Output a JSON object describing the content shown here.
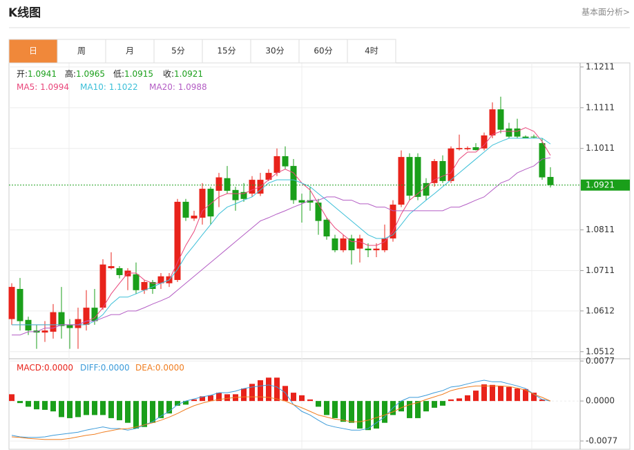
{
  "header": {
    "title": "K线图",
    "link": "基本面分析>"
  },
  "tabs": [
    "日",
    "周",
    "月",
    "5分",
    "15分",
    "30分",
    "60分",
    "4时"
  ],
  "active_tab": 0,
  "chart_data": [
    {
      "type": "candlestick",
      "up_color": "#e8231b",
      "down_color": "#1a9f1a",
      "ylim": [
        1.0498,
        1.1221
      ],
      "yticks": [
        1.0512,
        1.0612,
        1.0711,
        1.0811,
        1.1011,
        1.1111,
        1.1211
      ],
      "grid": true,
      "ohlc_labels": [
        "开:",
        "高:",
        "低:",
        "收:"
      ],
      "separator": ": ",
      "open": [
        1.0592,
        1.0666,
        1.059,
        1.0564,
        1.0559,
        1.0561,
        1.0609,
        1.0578,
        1.057,
        1.0578,
        1.062,
        1.062,
        1.0717,
        1.0717,
        1.0697,
        1.0702,
        1.0663,
        1.0683,
        1.068,
        1.068,
        1.0688,
        1.088,
        1.0839,
        1.0841,
        1.0912,
        1.0907,
        1.0938,
        1.0909,
        1.0904,
        1.09,
        1.09,
        1.0934,
        1.0951,
        1.0992,
        1.0968,
        1.0884,
        1.0884,
        1.0878,
        1.0836,
        1.079,
        1.0761,
        1.079,
        1.0765,
        1.0765,
        1.0761,
        1.0761,
        1.079,
        1.0873,
        1.099,
        1.099,
        1.0926,
        1.0926,
        1.098,
        1.0931,
        1.1009,
        1.1009,
        1.1014,
        1.1011,
        1.1043,
        1.1107,
        1.106,
        1.106,
        1.104,
        1.104,
        1.1024,
        1.0941
      ],
      "high": [
        1.068,
        1.0693,
        1.0598,
        1.0578,
        1.0587,
        1.0629,
        1.0671,
        1.0592,
        1.062,
        1.0663,
        1.0666,
        1.0739,
        1.0756,
        1.0722,
        1.0717,
        1.0731,
        1.0688,
        1.0688,
        1.0705,
        1.0705,
        1.0887,
        1.0887,
        1.0858,
        1.0926,
        1.0917,
        1.0951,
        1.0968,
        1.0917,
        1.0926,
        1.0943,
        1.0951,
        1.096,
        1.1011,
        1.1016,
        1.0985,
        1.09,
        1.0917,
        1.0887,
        1.0841,
        1.0799,
        1.0799,
        1.0799,
        1.0799,
        1.0778,
        1.0778,
        1.0824,
        1.0884,
        1.1006,
        1.0999,
        1.0999,
        1.0938,
        1.0985,
        1.0994,
        1.1016,
        1.1045,
        1.1016,
        1.1024,
        1.105,
        1.1124,
        1.1138,
        1.1074,
        1.1084,
        1.1043,
        1.1045,
        1.1036,
        1.0965
      ],
      "low": [
        1.0578,
        1.0564,
        1.0553,
        1.0519,
        1.0536,
        1.0544,
        1.0544,
        1.0519,
        1.0519,
        1.0564,
        1.0578,
        1.0615,
        1.0714,
        1.0692,
        1.0663,
        1.0654,
        1.0654,
        1.0654,
        1.0666,
        1.0671,
        1.0683,
        1.0833,
        1.0833,
        1.0824,
        1.0824,
        1.0867,
        1.09,
        1.0858,
        1.088,
        1.0892,
        1.0894,
        1.0931,
        1.0943,
        1.096,
        1.0875,
        1.0829,
        1.0858,
        1.0799,
        1.0787,
        1.0756,
        1.0756,
        1.0726,
        1.0731,
        1.0744,
        1.0744,
        1.0756,
        1.0782,
        1.0867,
        1.0884,
        1.0884,
        1.0884,
        1.0917,
        1.0926,
        1.0926,
        1.1006,
        1.1006,
        1.1006,
        1.1006,
        1.1036,
        1.1048,
        1.1036,
        1.1036,
        1.1036,
        1.1036,
        1.0934,
        1.0915
      ],
      "close": [
        1.0671,
        1.0587,
        1.0564,
        1.0559,
        1.0564,
        1.0609,
        1.0575,
        1.057,
        1.0592,
        1.062,
        1.0587,
        1.0726,
        1.0722,
        1.07,
        1.0711,
        1.0663,
        1.0683,
        1.0666,
        1.0697,
        1.0697,
        1.088,
        1.0841,
        1.0846,
        1.0912,
        1.0844,
        1.094,
        1.0907,
        1.0884,
        1.0887,
        1.0934,
        1.0934,
        1.0951,
        1.0992,
        1.0967,
        1.0884,
        1.0878,
        1.0878,
        1.0833,
        1.0795,
        1.0761,
        1.079,
        1.0761,
        1.079,
        1.0761,
        1.0765,
        1.079,
        1.0873,
        1.099,
        1.0895,
        1.0892,
        1.0895,
        1.098,
        1.0931,
        1.1011,
        1.1012,
        1.1012,
        1.1007,
        1.1043,
        1.1107,
        1.1057,
        1.104,
        1.104,
        1.1036,
        1.1038,
        1.094,
        1.0921
      ],
      "series": [
        {
          "name": "MA5",
          "color": "#e9457a",
          "values": [
            1.0578,
            1.0578,
            1.0578,
            1.0578,
            1.0578,
            1.0578,
            1.0578,
            1.0578,
            1.0578,
            1.0587,
            1.0595,
            1.062,
            1.0654,
            1.068,
            1.0705,
            1.0705,
            1.0688,
            1.068,
            1.068,
            1.0688,
            1.0731,
            1.0773,
            1.0807,
            1.0858,
            1.0875,
            1.0892,
            1.09,
            1.09,
            1.09,
            1.0909,
            1.0917,
            1.0934,
            1.0951,
            1.096,
            1.0951,
            1.0926,
            1.0909,
            1.0875,
            1.0841,
            1.0816,
            1.0799,
            1.0782,
            1.0782,
            1.0773,
            1.0773,
            1.0782,
            1.0807,
            1.085,
            1.0884,
            1.09,
            1.0917,
            1.0934,
            1.0943,
            1.0951,
            1.0985,
            1.1002,
            1.1002,
            1.1019,
            1.1045,
            1.1053,
            1.1053,
            1.1053,
            1.1062,
            1.1053,
            1.1028,
            1.0994
          ]
        },
        {
          "name": "MA10",
          "color": "#3bbfd8",
          "values": [
            1.0578,
            1.0578,
            1.0578,
            1.0578,
            1.0578,
            1.0578,
            1.0578,
            1.0578,
            1.0578,
            1.0578,
            1.0587,
            1.0603,
            1.0629,
            1.0646,
            1.0646,
            1.0654,
            1.0663,
            1.0671,
            1.068,
            1.0688,
            1.0714,
            1.0748,
            1.0773,
            1.0799,
            1.0824,
            1.085,
            1.0867,
            1.0875,
            1.0884,
            1.0892,
            1.0909,
            1.0926,
            1.0934,
            1.0934,
            1.0934,
            1.0926,
            1.0917,
            1.09,
            1.0884,
            1.0867,
            1.085,
            1.0833,
            1.0816,
            1.0799,
            1.079,
            1.079,
            1.0799,
            1.0824,
            1.085,
            1.0867,
            1.0884,
            1.09,
            1.0917,
            1.0934,
            1.0951,
            1.0968,
            1.0985,
            1.1002,
            1.1019,
            1.1028,
            1.1036,
            1.1036,
            1.1036,
            1.1036,
            1.1036,
            1.1022
          ]
        },
        {
          "name": "MA20",
          "color": "#b35cc4",
          "values": [
            1.0553,
            1.0553,
            1.0561,
            1.0561,
            1.057,
            1.057,
            1.0578,
            1.0578,
            1.0578,
            1.0587,
            1.0587,
            1.0595,
            1.0603,
            1.0603,
            1.0612,
            1.0612,
            1.062,
            1.0629,
            1.0637,
            1.0646,
            1.0663,
            1.068,
            1.0697,
            1.0714,
            1.0731,
            1.0748,
            1.0765,
            1.0782,
            1.0799,
            1.0816,
            1.0833,
            1.0841,
            1.085,
            1.0858,
            1.0867,
            1.0875,
            1.0884,
            1.0884,
            1.0892,
            1.0892,
            1.0884,
            1.0884,
            1.0875,
            1.0875,
            1.0867,
            1.0867,
            1.0858,
            1.0858,
            1.0858,
            1.0858,
            1.0858,
            1.0858,
            1.0858,
            1.0867,
            1.0867,
            1.0875,
            1.0884,
            1.0892,
            1.0909,
            1.0926,
            1.0934,
            1.0951,
            1.096,
            1.0968,
            1.0985,
            1.0988
          ]
        }
      ]
    },
    {
      "type": "macd",
      "ylim": [
        -0.0093,
        0.008
      ],
      "yticks": [
        {
          "value": 0.0077,
          "label": "0.0077"
        },
        {
          "value": 0,
          "label": "0.0000"
        },
        {
          "value": -0.0077,
          "label": "-0.0077"
        }
      ],
      "separator": ":",
      "series": [
        {
          "name": "MACD",
          "up_color": "#e8231b",
          "down_color": "#1a9f1a",
          "legend_value": "0.0000",
          "values": [
            0.0013,
            -0.0004,
            -0.0011,
            -0.0016,
            -0.0017,
            -0.002,
            -0.0031,
            -0.0033,
            -0.0031,
            -0.0027,
            -0.0027,
            -0.0027,
            -0.0033,
            -0.0037,
            -0.0042,
            -0.0053,
            -0.005,
            -0.0042,
            -0.0033,
            -0.0024,
            -0.0009,
            -0.0007,
            0.0003,
            0.0009,
            0.0011,
            0.0016,
            0.0013,
            0.0013,
            0.0024,
            0.0033,
            0.004,
            0.0045,
            0.0045,
            0.0029,
            0.0016,
            0.0011,
            0.0003,
            -0.0011,
            -0.0027,
            -0.0033,
            -0.004,
            -0.0042,
            -0.0053,
            -0.0056,
            -0.0053,
            -0.0042,
            -0.0027,
            -0.002,
            -0.0033,
            -0.0033,
            -0.002,
            -0.0013,
            -0.0009,
            0.0003,
            0.0005,
            0.0011,
            0.002,
            0.0032,
            0.0031,
            0.0029,
            0.0027,
            0.0024,
            0.0023,
            0.0016,
            0.0003,
            0
          ]
        },
        {
          "name": "DIFF",
          "color": "#3a9ad9",
          "legend_value": "0.0000",
          "values": [
            -0.0066,
            -0.0069,
            -0.007,
            -0.007,
            -0.0069,
            -0.0066,
            -0.0064,
            -0.0062,
            -0.006,
            -0.0056,
            -0.0053,
            -0.005,
            -0.0053,
            -0.0053,
            -0.0056,
            -0.0053,
            -0.0046,
            -0.004,
            -0.0029,
            -0.002,
            -0.0007,
            0,
            0.0004,
            0.0008,
            0.0011,
            0.0016,
            0.0016,
            0.0019,
            0.0024,
            0.0027,
            0.0029,
            0.0031,
            0.0027,
            0.0016,
            -0.0007,
            -0.002,
            -0.0027,
            -0.0037,
            -0.0046,
            -0.005,
            -0.0053,
            -0.0056,
            -0.0056,
            -0.0053,
            -0.0042,
            -0.0031,
            -0.0013,
            0,
            0.0007,
            0.0007,
            0.0011,
            0.0016,
            0.002,
            0.0027,
            0.0029,
            0.0033,
            0.0037,
            0.004,
            0.0037,
            0.0037,
            0.0033,
            0.0029,
            0.0024,
            0.0013,
            0.0003,
            0
          ]
        },
        {
          "name": "DEA",
          "color": "#f07d1f",
          "legend_value": "0.0000",
          "values": [
            -0.0069,
            -0.007,
            -0.0072,
            -0.0073,
            -0.0074,
            -0.0074,
            -0.0074,
            -0.0072,
            -0.0069,
            -0.0066,
            -0.0064,
            -0.006,
            -0.0057,
            -0.0054,
            -0.0053,
            -0.005,
            -0.0046,
            -0.0042,
            -0.0037,
            -0.0031,
            -0.0024,
            -0.0016,
            -0.0009,
            -0.0004,
            0,
            0.0003,
            0.0005,
            0.0007,
            0.0008,
            0.0008,
            0.0008,
            0.0007,
            0.0004,
            0,
            -0.0007,
            -0.0013,
            -0.002,
            -0.0027,
            -0.0031,
            -0.0035,
            -0.0037,
            -0.004,
            -0.004,
            -0.0037,
            -0.0032,
            -0.0027,
            -0.0021,
            -0.0013,
            -0.0007,
            -0.0003,
            0.0003,
            0.0008,
            0.0013,
            0.002,
            0.0024,
            0.0027,
            0.0029,
            0.0029,
            0.0029,
            0.0029,
            0.0028,
            0.0025,
            0.0021,
            0.0013,
            0.0007,
            0
          ]
        }
      ]
    }
  ]
}
